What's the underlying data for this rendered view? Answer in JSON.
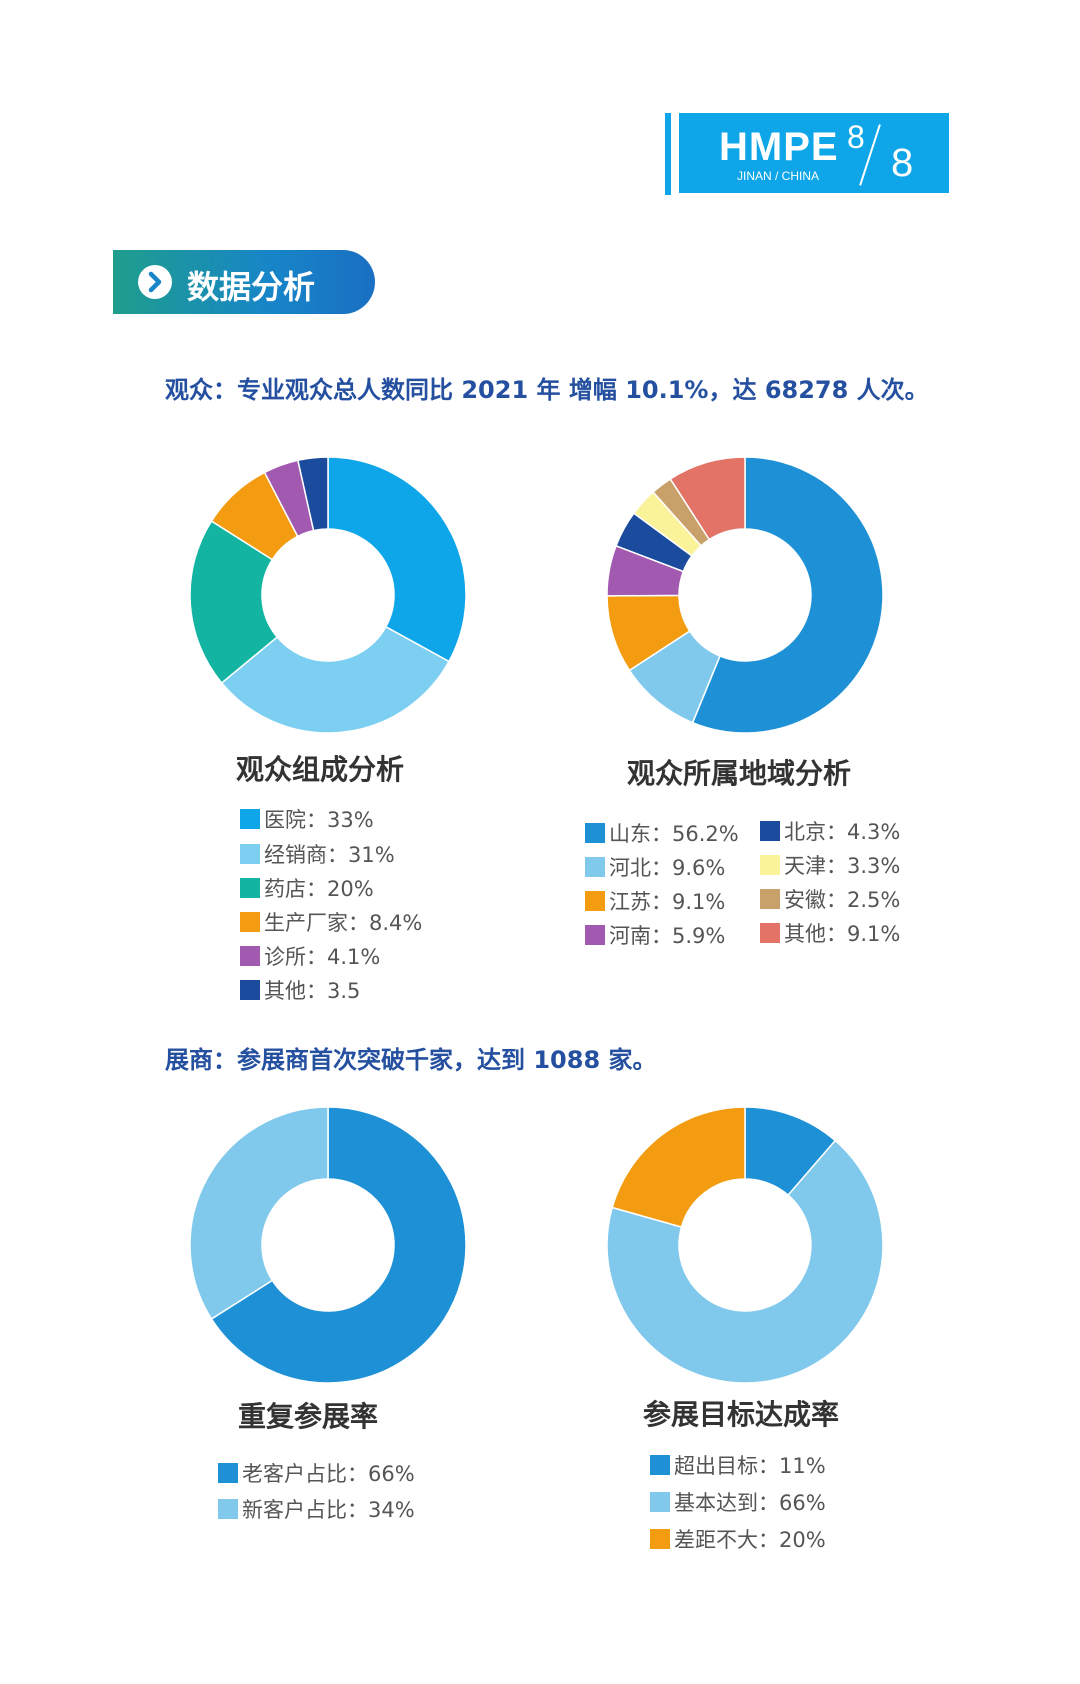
{
  "header": {
    "logo_title": "HMPE",
    "logo_sub": "JINAN / CHINA",
    "page": "8",
    "total": "8"
  },
  "section": {
    "title": "数据分析"
  },
  "audience_headline": "观众：专业观众总人数同比 2021 年 增幅 10.1%，达 68278 人次。",
  "exhibitor_headline": "展商：参展商首次突破千家，达到 1088 家。",
  "colors": {
    "brand_blue": "#0ea5e9",
    "headline_blue": "#2550a0"
  },
  "chart_data": [
    {
      "type": "pie",
      "title": "观众组成分析",
      "categories": [
        "医院",
        "经销商",
        "药店",
        "生产厂家",
        "诊所",
        "其他"
      ],
      "values": [
        33,
        31,
        20,
        8.4,
        4.1,
        3.5
      ],
      "labels": [
        "医院：33%",
        "经销商：31%",
        "药店：20%",
        "生产厂家：8.4%",
        "诊所：4.1%",
        "其他：3.5"
      ],
      "colors": [
        "#0ea5e9",
        "#7dcff2",
        "#13b4a2",
        "#f39c12",
        "#a259b0",
        "#1a4b9c"
      ],
      "legend": "bottom"
    },
    {
      "type": "pie",
      "title": "观众所属地域分析",
      "categories": [
        "山东",
        "河北",
        "江苏",
        "河南",
        "北京",
        "天津",
        "安徽",
        "其他"
      ],
      "values": [
        56.2,
        9.6,
        9.1,
        5.9,
        4.3,
        3.3,
        2.5,
        9.1
      ],
      "labels": [
        "山东：56.2%",
        "河北：9.6%",
        "江苏：9.1%",
        "河南：5.9%",
        "北京：4.3%",
        "天津：3.3%",
        "安徽：2.5%",
        "其他：9.1%"
      ],
      "colors": [
        "#1e90d6",
        "#80c8ec",
        "#f39c12",
        "#a259b0",
        "#1a4b9c",
        "#fbf39a",
        "#c8a06a",
        "#e27366"
      ],
      "legend": "bottom"
    },
    {
      "type": "pie",
      "title": "重复参展率",
      "categories": [
        "老客户占比",
        "新客户占比"
      ],
      "values": [
        66,
        34
      ],
      "labels": [
        "老客户占比：66%",
        "新客户占比：34%"
      ],
      "colors": [
        "#1e90d6",
        "#80c8ec"
      ],
      "legend": "bottom"
    },
    {
      "type": "pie",
      "title": "参展目标达成率",
      "categories": [
        "超出目标",
        "基本达到",
        "差距不大"
      ],
      "values": [
        11,
        66,
        20
      ],
      "labels": [
        "超出目标：11%",
        "基本达到：66%",
        "差距不大：20%"
      ],
      "colors": [
        "#1e90d6",
        "#80c8ec",
        "#f39c12"
      ],
      "legend": "bottom"
    }
  ]
}
